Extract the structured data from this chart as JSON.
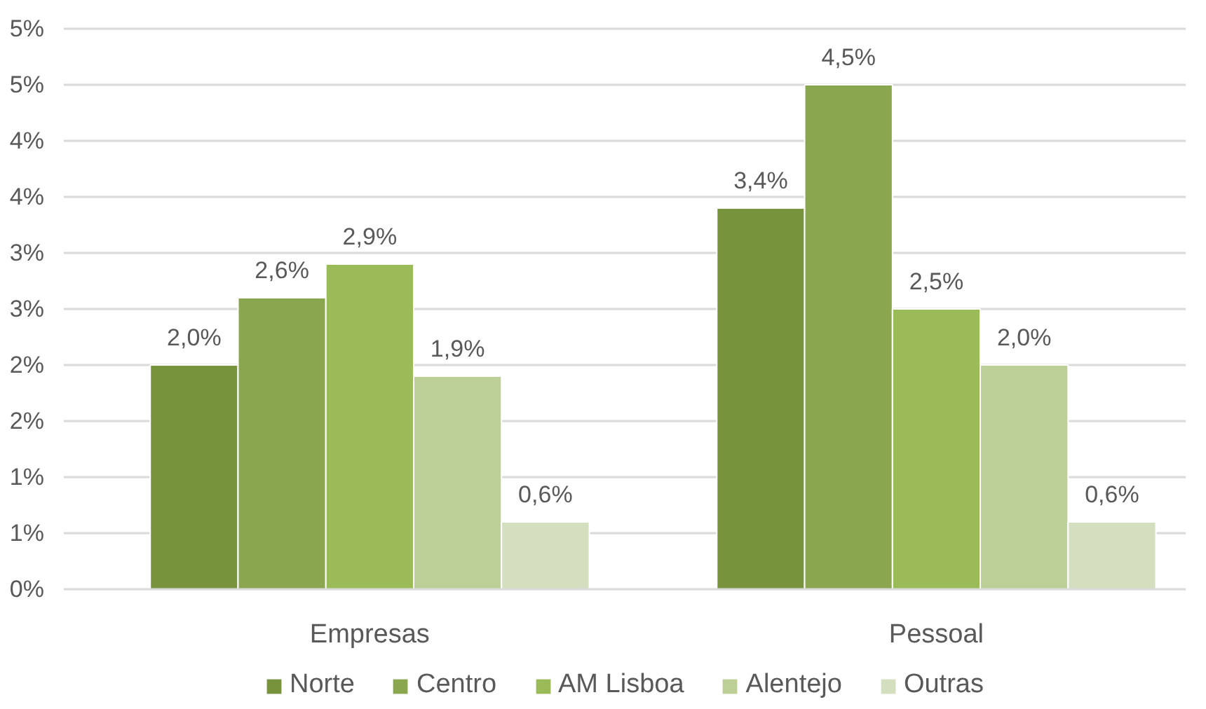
{
  "chart_data": {
    "type": "bar",
    "categories": [
      "Empresas",
      "Pessoal"
    ],
    "series": [
      {
        "name": "Norte",
        "color": "#77933c",
        "values": [
          2.0,
          3.4
        ],
        "value_labels": [
          "2,0%",
          "3,4%"
        ]
      },
      {
        "name": "Centro",
        "color": "#8aa64e",
        "values": [
          2.6,
          4.5
        ],
        "value_labels": [
          "2,6%",
          "4,5%"
        ]
      },
      {
        "name": "AM Lisboa",
        "color": "#9bbb59",
        "values": [
          2.9,
          2.5
        ],
        "value_labels": [
          "2,9%",
          "2,5%"
        ]
      },
      {
        "name": "Alentejo",
        "color": "#bbcf96",
        "values": [
          1.9,
          2.0
        ],
        "value_labels": [
          "1,9%",
          "2,0%"
        ]
      },
      {
        "name": "Outras",
        "color": "#d3dfbe",
        "values": [
          0.6,
          0.6
        ],
        "value_labels": [
          "0,6%",
          "0,6%"
        ]
      }
    ],
    "ylim": [
      0,
      5
    ],
    "yticks": [
      {
        "value": 0,
        "label": "0%"
      },
      {
        "value": 0.5,
        "label": "1%"
      },
      {
        "value": 1,
        "label": "1%"
      },
      {
        "value": 1.5,
        "label": "2%"
      },
      {
        "value": 2,
        "label": "2%"
      },
      {
        "value": 2.5,
        "label": "3%"
      },
      {
        "value": 3,
        "label": "3%"
      },
      {
        "value": 3.5,
        "label": "4%"
      },
      {
        "value": 4,
        "label": "4%"
      },
      {
        "value": 4.5,
        "label": "5%"
      },
      {
        "value": 5,
        "label": "5%"
      }
    ],
    "grid": "y",
    "legend": "bottom"
  }
}
